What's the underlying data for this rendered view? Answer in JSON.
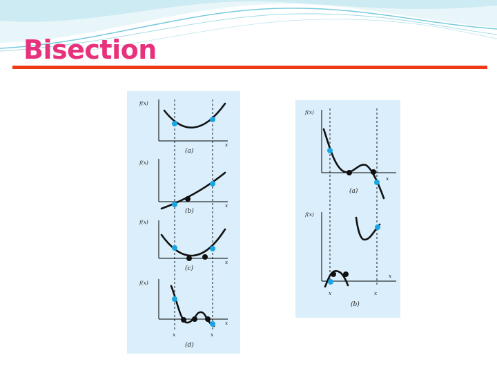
{
  "slide": {
    "title": "Bisection",
    "title_color": "#e8317c",
    "rule_color": "#ee3a16",
    "background_color": "#ffffff",
    "decoration_color": "#3fb4cf"
  },
  "figures": {
    "panel_color": "#daeefb",
    "point_blue": "#1aa5e2",
    "point_black": "#111111",
    "left": {
      "panels": [
        {
          "y_label": "f(x)",
          "x_label": "x",
          "caption": "(a)",
          "bound_labels": []
        },
        {
          "y_label": "f(x)",
          "x_label": "x",
          "caption": "(b)",
          "bound_labels": []
        },
        {
          "y_label": "f(x)",
          "x_label": "x",
          "caption": "(c)",
          "bound_labels": []
        },
        {
          "y_label": "f(x)",
          "x_label": "x",
          "caption": "(d)",
          "bound_labels": [
            "x",
            "x"
          ]
        }
      ]
    },
    "right": {
      "panels": [
        {
          "y_label": "f(x)",
          "x_label": "x",
          "caption": "(a)",
          "bound_labels": []
        },
        {
          "y_label": "f(x)",
          "x_label": "x",
          "caption": "(b)",
          "bound_labels": [
            "x",
            "x"
          ]
        }
      ]
    }
  }
}
